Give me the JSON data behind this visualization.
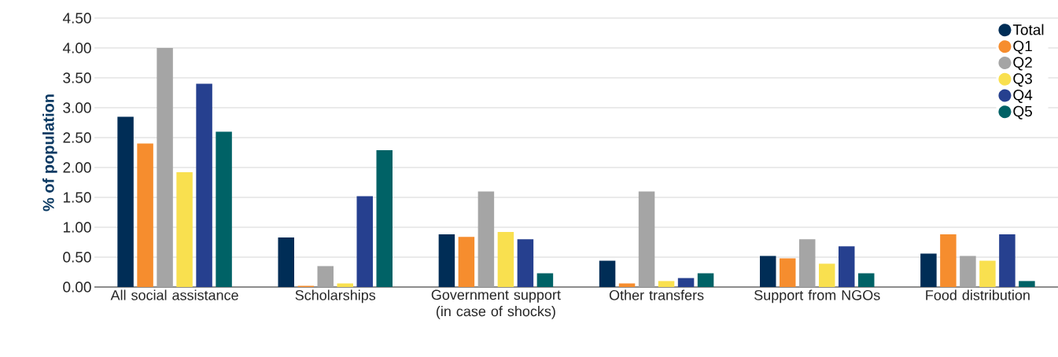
{
  "chart_data": {
    "type": "bar",
    "ylabel": "% of population",
    "categories": [
      "All social assistance",
      "Scholarships",
      "Government support (in case of shocks)",
      "Other transfers",
      "Support from NGOs",
      "Food distribution"
    ],
    "series": [
      {
        "name": "Total",
        "color": "#002d56",
        "values": [
          2.85,
          0.83,
          0.88,
          0.44,
          0.52,
          0.56
        ]
      },
      {
        "name": "Q1",
        "color": "#f68d2e",
        "values": [
          2.4,
          0.02,
          0.84,
          0.06,
          0.48,
          0.88
        ]
      },
      {
        "name": "Q2",
        "color": "#a5a5a5",
        "values": [
          4.0,
          0.35,
          1.6,
          1.6,
          0.8,
          0.52
        ]
      },
      {
        "name": "Q3",
        "color": "#f9e04f",
        "values": [
          1.92,
          0.06,
          0.92,
          0.1,
          0.39,
          0.44
        ]
      },
      {
        "name": "Q4",
        "color": "#26408f",
        "values": [
          3.4,
          1.52,
          0.8,
          0.15,
          0.68,
          0.88
        ]
      },
      {
        "name": "Q5",
        "color": "#006266",
        "values": [
          2.6,
          2.29,
          0.23,
          0.23,
          0.23,
          0.1
        ]
      }
    ],
    "ylim": [
      0,
      4.5
    ],
    "yticks": [
      {
        "value": 0,
        "label": "0.00"
      },
      {
        "value": 0.5,
        "label": "0.50"
      },
      {
        "value": 1,
        "label": "1.00"
      },
      {
        "value": 1.5,
        "label": "1.50"
      },
      {
        "value": 2,
        "label": "2.00"
      },
      {
        "value": 2.5,
        "label": "2.50"
      },
      {
        "value": 3,
        "label": "3.00"
      },
      {
        "value": 3.5,
        "label": "3.50"
      },
      {
        "value": 4,
        "label": "4.00"
      },
      {
        "value": 4.5,
        "label": "4.50"
      }
    ],
    "grid": "y",
    "legend": "top right",
    "marker": "circle"
  }
}
